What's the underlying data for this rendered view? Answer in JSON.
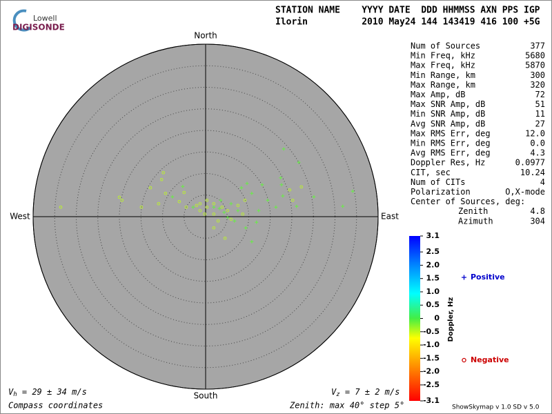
{
  "logo": {
    "top": "Lowell",
    "bottom": "DIGISONDE"
  },
  "header": {
    "labels": "STATION NAME    YYYY DATE  DDD HHMMSS AXN PPS IGP",
    "values": "Ilorin          2010 May24 144 143419 416 100 +5G"
  },
  "chart_data": {
    "type": "scatter",
    "directions": {
      "north": "North",
      "south": "South",
      "east": "East",
      "west": "West"
    },
    "xlim": [
      -40,
      40
    ],
    "ylim": [
      -40,
      40
    ],
    "rticks": [
      5,
      10,
      15,
      20,
      25,
      30,
      35,
      40
    ],
    "series": [
      {
        "name": "Positive",
        "marker": "plus",
        "color": "#66ee44",
        "legend_color": "#0000cc",
        "x": [
          18.1,
          21.6,
          17.4,
          17.6,
          34.1,
          25.1,
          31.8,
          21.1,
          17.9,
          13.1,
          9.6,
          8.3,
          10.7,
          14.4,
          16.3,
          11.8,
          9.3,
          10.7,
          7.5,
          5.9,
          3.5,
          1.9,
          -5.3,
          -7.7,
          -2.9,
          5.1,
          6.7,
          12.3,
          4.3,
          3.2
        ],
        "y": [
          15.7,
          12.6,
          9.0,
          7.4,
          5.9,
          4.6,
          2.4,
          2.4,
          4.8,
          7.4,
          7.7,
          6.7,
          5.4,
          3.8,
          2.2,
          -1.3,
          -2.6,
          -5.8,
          1.4,
          3.0,
          3.8,
          2.2,
          7.0,
          4.6,
          2.2,
          -0.2,
          -1.0,
          1.4,
          1.0,
          1.9
        ]
      },
      {
        "name": "Negative",
        "marker": "circle",
        "color": "#bbee33",
        "legend_color": "#cc0000",
        "x": [
          -33.6,
          -20.0,
          -19.4,
          -12.8,
          -10.2,
          -9.3,
          -14.9,
          -10.9,
          -6.1,
          -4.5,
          -2.1,
          -1.3,
          0.3,
          1.9,
          3.8,
          2.9,
          5.1,
          4.5,
          5.9,
          8.6,
          19.5,
          22.2,
          20.2,
          0.3,
          -0.2,
          1.9,
          -1.3,
          -9.8,
          -5.0,
          7.5,
          1.9,
          9.1
        ],
        "y": [
          2.2,
          4.5,
          3.8,
          6.7,
          8.6,
          5.4,
          2.2,
          3.0,
          3.5,
          2.2,
          2.6,
          1.4,
          2.2,
          0.6,
          2.2,
          -1.0,
          1.4,
          -5.0,
          -0.6,
          0.6,
          6.2,
          6.9,
          3.8,
          3.8,
          0.6,
          3.0,
          3.0,
          10.2,
          5.6,
          2.6,
          -2.6,
          3.8
        ]
      }
    ],
    "colorbar": {
      "label": "Doppler, Hz",
      "lim": [
        -3.1,
        3.1
      ],
      "ticks": [
        3.1,
        2.5,
        {
          "value": 2,
          "label": "2.0"
        },
        1.5,
        {
          "value": 1,
          "label": "1.0"
        },
        0.5,
        0,
        -0.5,
        {
          "value": -1,
          "label": "-1.0"
        },
        -1.5,
        {
          "value": -2,
          "label": "-2.0"
        },
        -2.5,
        -3.1
      ]
    },
    "vh": {
      "symbol": "V",
      "subscript": "h",
      "text": " = 29 ± 34 m/s"
    },
    "vz": {
      "symbol": "V",
      "subscript": "z",
      "text": " = 7 ± 2 m/s"
    },
    "coordinates": "Compass coordinates",
    "zenith_note": "Zenith: max 40°  step 5°"
  },
  "stats": {
    "rows": [
      [
        "Num of Sources",
        "377"
      ],
      [
        "Min Freq, kHz",
        "5680"
      ],
      [
        "Max Freq, kHz",
        "5870"
      ],
      [
        "Min Range, km",
        "300"
      ],
      [
        "Max Range, km",
        "320"
      ],
      [
        "Max Amp, dB",
        "72"
      ],
      [
        "Max SNR Amp, dB",
        "51"
      ],
      [
        "Min SNR Amp, dB",
        "11"
      ],
      [
        "Avg SNR Amp, dB",
        "27"
      ],
      [
        "Max RMS Err, deg",
        "12.0"
      ],
      [
        "Min RMS Err, deg",
        "0.0"
      ],
      [
        "Avg RMS Err, deg",
        "4.3"
      ],
      [
        "Doppler Res, Hz",
        "0.0977"
      ],
      [
        "CIT, sec",
        "10.24"
      ],
      [
        "Num of CITs",
        "4"
      ],
      [
        "Polarization",
        "O,X-mode"
      ],
      [
        "Center of Sources, deg:"
      ],
      [
        "Zenith",
        "4.8"
      ],
      [
        "Azimuth",
        "304"
      ]
    ]
  },
  "footer": "ShowSkymap v 1.0  SD v 5.0"
}
